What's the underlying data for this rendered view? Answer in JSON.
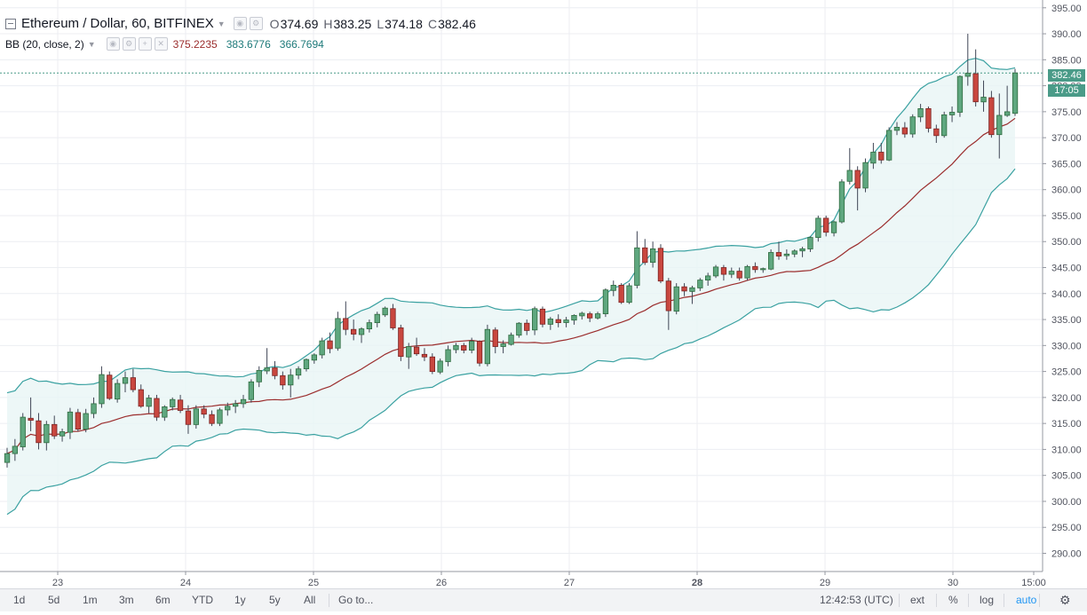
{
  "symbol": {
    "title": "Ethereum / Dollar, 60, BITFINEX",
    "ohlc": {
      "o_label": "O",
      "o": "374.69",
      "h_label": "H",
      "h": "383.25",
      "l_label": "L",
      "l": "374.18",
      "c_label": "C",
      "c": "382.46"
    }
  },
  "indicator": {
    "name": "BB (20, close, 2)",
    "basis": "375.2235",
    "upper": "383.6776",
    "lower": "366.7694"
  },
  "colors": {
    "up": "#26a69a",
    "down": "#ef5350",
    "band": "#3aa1a1",
    "basis": "#9b2d2d",
    "badge": "#4a9b88"
  },
  "price_badge": {
    "price": "382.46",
    "countdown": "17:05"
  },
  "chart_data": {
    "type": "candlestick",
    "y_ticks": [
      "395.00",
      "390.00",
      "385.00",
      "380.00",
      "375.00",
      "370.00",
      "365.00",
      "360.00",
      "355.00",
      "350.00",
      "345.00",
      "340.00",
      "335.00",
      "330.00",
      "325.00",
      "320.00",
      "315.00",
      "310.00",
      "305.00",
      "300.00",
      "295.00",
      "290.00"
    ],
    "x_ticks": [
      "23",
      "24",
      "25",
      "26",
      "27",
      "28",
      "29",
      "30",
      "15:00"
    ],
    "ylim": [
      286.5,
      396.5
    ],
    "grid": true,
    "last_price": 382.46,
    "candles": [
      [
        307.5,
        310.3,
        306.5,
        309.2
      ],
      [
        309.2,
        312.0,
        307.8,
        310.6
      ],
      [
        310.5,
        317.0,
        309.8,
        316.2
      ],
      [
        316.0,
        320.0,
        313.5,
        315.6
      ],
      [
        315.5,
        317.0,
        310.0,
        311.3
      ],
      [
        311.3,
        315.5,
        309.8,
        314.8
      ],
      [
        314.8,
        316.5,
        312.0,
        312.6
      ],
      [
        312.6,
        314.0,
        311.5,
        313.4
      ],
      [
        313.3,
        318.0,
        312.0,
        317.2
      ],
      [
        317.1,
        317.8,
        313.5,
        313.9
      ],
      [
        313.9,
        317.8,
        313.3,
        316.9
      ],
      [
        316.9,
        320.0,
        316.0,
        318.8
      ],
      [
        318.8,
        326.0,
        318.0,
        324.4
      ],
      [
        324.3,
        325.0,
        319.5,
        319.8
      ],
      [
        319.7,
        323.5,
        319.0,
        322.7
      ],
      [
        322.7,
        325.0,
        321.0,
        323.8
      ],
      [
        323.8,
        325.5,
        321.0,
        321.5
      ],
      [
        321.5,
        322.5,
        318.0,
        318.3
      ],
      [
        318.3,
        320.5,
        317.0,
        319.9
      ],
      [
        319.8,
        320.5,
        315.5,
        316.2
      ],
      [
        316.2,
        318.5,
        315.5,
        318.2
      ],
      [
        318.2,
        320.0,
        317.5,
        319.6
      ],
      [
        319.5,
        320.5,
        317.0,
        317.5
      ],
      [
        317.4,
        318.5,
        313.0,
        314.8
      ],
      [
        314.8,
        318.5,
        314.0,
        317.8
      ],
      [
        317.8,
        318.5,
        316.0,
        316.8
      ],
      [
        316.7,
        317.5,
        314.5,
        315.0
      ],
      [
        315.0,
        318.0,
        314.5,
        317.6
      ],
      [
        317.6,
        319.0,
        316.5,
        318.3
      ],
      [
        318.3,
        319.5,
        317.0,
        318.8
      ],
      [
        318.8,
        320.5,
        318.0,
        319.6
      ],
      [
        319.6,
        323.5,
        319.0,
        323.0
      ],
      [
        323.0,
        326.0,
        322.0,
        325.2
      ],
      [
        325.1,
        329.5,
        324.5,
        325.7
      ],
      [
        325.7,
        327.0,
        323.5,
        324.2
      ],
      [
        324.2,
        325.0,
        321.5,
        322.4
      ],
      [
        322.4,
        325.5,
        320.0,
        324.3
      ],
      [
        324.3,
        326.0,
        323.5,
        325.5
      ],
      [
        325.5,
        327.5,
        325.0,
        327.3
      ],
      [
        327.2,
        328.5,
        326.5,
        328.2
      ],
      [
        328.2,
        331.5,
        327.5,
        330.9
      ],
      [
        330.9,
        332.5,
        328.5,
        329.4
      ],
      [
        329.5,
        336.5,
        329.0,
        335.2
      ],
      [
        335.2,
        338.5,
        332.0,
        333.1
      ],
      [
        333.1,
        335.0,
        331.0,
        332.2
      ],
      [
        332.1,
        333.5,
        330.5,
        333.2
      ],
      [
        333.2,
        335.0,
        332.5,
        334.4
      ],
      [
        334.4,
        336.5,
        333.5,
        336.0
      ],
      [
        335.9,
        337.5,
        335.5,
        337.2
      ],
      [
        337.1,
        338.0,
        333.0,
        333.4
      ],
      [
        333.4,
        334.0,
        327.0,
        327.9
      ],
      [
        327.8,
        330.5,
        325.5,
        329.8
      ],
      [
        329.7,
        331.5,
        328.0,
        328.4
      ],
      [
        328.3,
        329.5,
        327.0,
        327.8
      ],
      [
        327.8,
        328.5,
        324.5,
        325.0
      ],
      [
        324.9,
        327.5,
        324.5,
        327.0
      ],
      [
        326.9,
        330.0,
        326.0,
        329.2
      ],
      [
        329.2,
        330.5,
        328.5,
        330.0
      ],
      [
        330.0,
        330.5,
        328.5,
        329.1
      ],
      [
        329.1,
        331.5,
        328.5,
        330.8
      ],
      [
        330.8,
        331.0,
        326.0,
        326.6
      ],
      [
        326.5,
        334.0,
        326.0,
        333.1
      ],
      [
        333.0,
        333.5,
        328.5,
        329.8
      ],
      [
        329.8,
        331.0,
        328.5,
        330.3
      ],
      [
        330.2,
        332.5,
        330.0,
        332.0
      ],
      [
        332.0,
        334.5,
        331.5,
        334.3
      ],
      [
        334.3,
        335.0,
        332.0,
        332.9
      ],
      [
        333.0,
        337.5,
        332.0,
        337.1
      ],
      [
        337.0,
        337.5,
        333.5,
        334.1
      ],
      [
        334.1,
        335.5,
        333.0,
        335.1
      ],
      [
        335.0,
        336.0,
        333.5,
        334.4
      ],
      [
        334.4,
        335.5,
        333.5,
        334.9
      ],
      [
        334.9,
        336.0,
        334.0,
        335.8
      ],
      [
        335.7,
        336.5,
        335.0,
        336.2
      ],
      [
        336.1,
        336.5,
        334.5,
        335.3
      ],
      [
        335.3,
        336.5,
        335.0,
        336.1
      ],
      [
        336.1,
        341.0,
        335.5,
        340.7
      ],
      [
        340.6,
        342.5,
        339.5,
        341.6
      ],
      [
        341.6,
        342.0,
        338.0,
        338.3
      ],
      [
        338.3,
        342.0,
        338.0,
        341.5
      ],
      [
        341.6,
        352.0,
        341.0,
        348.8
      ],
      [
        348.8,
        350.5,
        345.5,
        346.0
      ],
      [
        346.0,
        350.0,
        345.0,
        348.6
      ],
      [
        348.7,
        349.5,
        342.0,
        342.4
      ],
      [
        342.4,
        343.0,
        333.0,
        336.7
      ],
      [
        336.6,
        342.0,
        336.0,
        341.3
      ],
      [
        341.3,
        342.0,
        339.5,
        340.5
      ],
      [
        340.4,
        341.5,
        338.0,
        341.1
      ],
      [
        341.1,
        343.0,
        340.5,
        342.6
      ],
      [
        342.6,
        344.0,
        341.5,
        343.4
      ],
      [
        343.4,
        345.5,
        343.0,
        345.1
      ],
      [
        345.0,
        345.5,
        342.5,
        343.7
      ],
      [
        343.7,
        345.0,
        343.0,
        344.3
      ],
      [
        344.3,
        345.0,
        342.5,
        343.0
      ],
      [
        343.0,
        345.5,
        342.5,
        345.2
      ],
      [
        345.2,
        346.0,
        344.0,
        344.6
      ],
      [
        344.6,
        345.0,
        344.0,
        344.8
      ],
      [
        344.7,
        348.5,
        344.5,
        347.9
      ],
      [
        347.9,
        350.0,
        346.5,
        347.2
      ],
      [
        347.3,
        348.5,
        346.5,
        347.6
      ],
      [
        347.6,
        348.5,
        347.0,
        348.2
      ],
      [
        348.2,
        349.0,
        347.0,
        348.6
      ],
      [
        348.6,
        351.0,
        348.0,
        350.8
      ],
      [
        350.8,
        355.0,
        350.0,
        354.5
      ],
      [
        354.5,
        355.0,
        351.0,
        351.8
      ],
      [
        351.7,
        354.0,
        351.0,
        353.8
      ],
      [
        353.8,
        362.0,
        353.5,
        361.5
      ],
      [
        361.6,
        368.0,
        361.0,
        363.7
      ],
      [
        363.7,
        364.5,
        356.0,
        360.3
      ],
      [
        360.3,
        366.0,
        359.5,
        365.2
      ],
      [
        365.1,
        369.0,
        364.0,
        367.2
      ],
      [
        367.2,
        369.0,
        365.0,
        365.7
      ],
      [
        365.7,
        372.0,
        365.5,
        371.4
      ],
      [
        371.4,
        373.0,
        370.5,
        372.0
      ],
      [
        371.9,
        373.0,
        370.0,
        370.7
      ],
      [
        370.7,
        374.5,
        370.0,
        374.0
      ],
      [
        374.0,
        376.5,
        373.0,
        375.6
      ],
      [
        375.6,
        376.0,
        371.0,
        371.8
      ],
      [
        371.7,
        372.5,
        369.0,
        370.4
      ],
      [
        370.4,
        375.0,
        370.0,
        374.4
      ],
      [
        374.4,
        376.0,
        373.0,
        374.9
      ],
      [
        374.9,
        382.0,
        374.0,
        381.8
      ],
      [
        381.8,
        390.0,
        380.0,
        382.4
      ],
      [
        382.3,
        387.0,
        376.0,
        376.9
      ],
      [
        376.9,
        381.0,
        375.0,
        377.8
      ],
      [
        377.7,
        379.0,
        370.0,
        370.6
      ],
      [
        370.6,
        378.5,
        366.0,
        374.3
      ],
      [
        374.3,
        380.0,
        374.0,
        375.0
      ],
      [
        374.69,
        383.25,
        374.18,
        382.46
      ]
    ]
  },
  "toolbar": {
    "periods": [
      "1d",
      "5d",
      "1m",
      "3m",
      "6m",
      "YTD",
      "1y",
      "5y",
      "All"
    ],
    "goto": "Go to...",
    "time": "12:42:53 (UTC)",
    "ext": "ext",
    "percent": "%",
    "log": "log",
    "auto": "auto"
  }
}
